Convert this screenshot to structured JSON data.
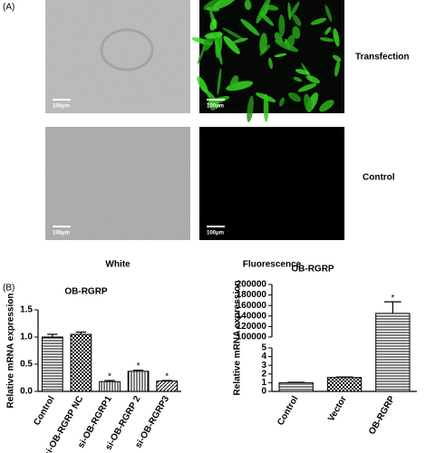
{
  "panel_a": {
    "label": "(A)",
    "rows": [
      "Transfection",
      "Control"
    ],
    "columns": [
      "White",
      "Fluorescence"
    ],
    "scale_bar": "100μm"
  },
  "panel_b_label": "(B)",
  "chart_data": [
    {
      "type": "bar",
      "title": "OB-RGRP",
      "y_label": "Relative mRNA expression",
      "categories": [
        "Control",
        "si-OB-RGRP NC",
        "si-OB-RGRP1",
        "si-OB-RGRP 2",
        "si-OB-RGRP3"
      ],
      "values": [
        1.0,
        1.05,
        0.18,
        0.37,
        0.19
      ],
      "errors": [
        0.05,
        0.04,
        0.02,
        0.02,
        0.01
      ],
      "significant": [
        false,
        false,
        true,
        true,
        true
      ],
      "significance_label": "*",
      "patterns": [
        "hlines",
        "checker",
        "vlines",
        "vlines",
        "diag"
      ],
      "color": "#000000",
      "ylim": [
        0,
        1.5
      ],
      "yticks": [
        {
          "value": 0,
          "label": "0.0"
        },
        {
          "value": 0.5,
          "label": "0.5"
        },
        {
          "value": 1,
          "label": "1.0"
        },
        {
          "value": 1.5,
          "label": "1.5"
        }
      ]
    },
    {
      "type": "bar",
      "title": "OB-RGRP",
      "y_label": "Relative mRNA expression",
      "categories": [
        "Control",
        "Vector",
        "OB-RGRP"
      ],
      "values": [
        1,
        1.6,
        145000
      ],
      "errors": [
        0.05,
        0.06,
        22000
      ],
      "significant": [
        false,
        false,
        true
      ],
      "significance_label": "*",
      "patterns": [
        "hlines",
        "checker",
        "hlines"
      ],
      "color": "#000000",
      "broken_axis": true,
      "segments": [
        {
          "ylim": [
            0,
            5
          ],
          "yticks": [
            0,
            1,
            2,
            3,
            4,
            5
          ]
        },
        {
          "ylim": [
            100000,
            200000
          ],
          "yticks": [
            100000,
            120000,
            140000,
            160000,
            180000,
            200000
          ]
        }
      ]
    }
  ]
}
